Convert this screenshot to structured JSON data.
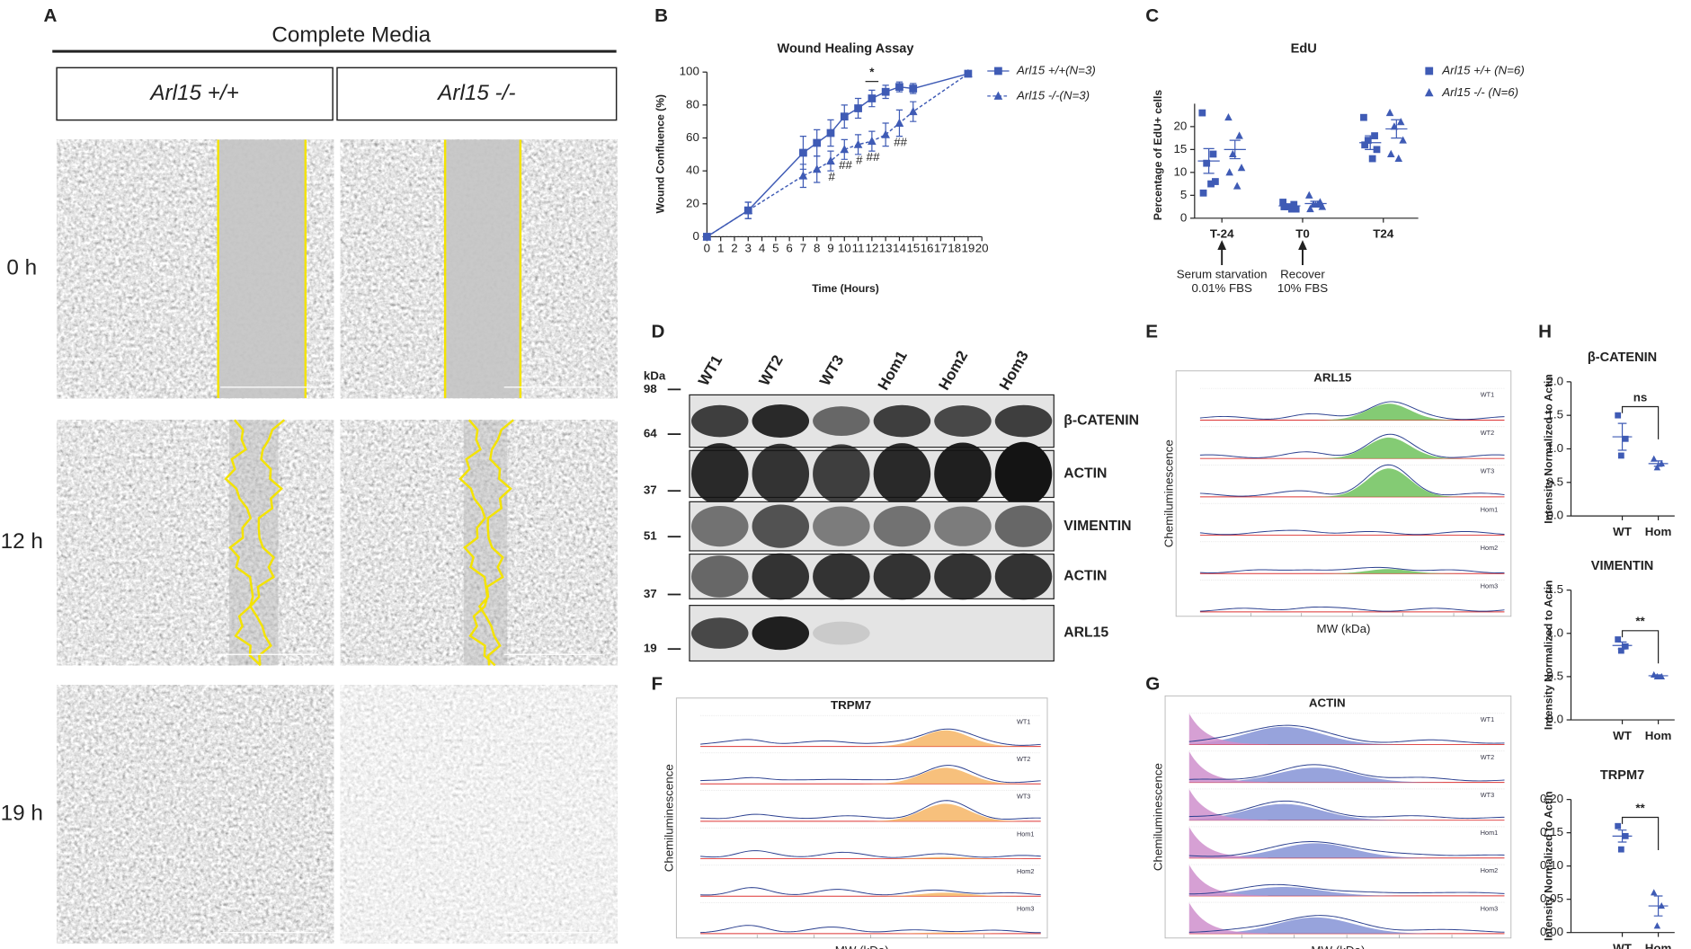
{
  "panel_a": {
    "label": "A",
    "header": "Complete Media",
    "columns": [
      "Arl15 +/+",
      "Arl15 -/-"
    ],
    "rows": [
      "0 h",
      "12 h",
      "19 h"
    ]
  },
  "chart_data": [
    {
      "panel": "B",
      "type": "line",
      "title": "Wound Healing Assay",
      "x_label": "Time (Hours)",
      "y_label": "Wound Confluence (%)",
      "x": [
        0,
        3,
        7,
        8,
        9,
        10,
        11,
        12,
        13,
        14,
        15,
        19
      ],
      "xlim": [
        0,
        20
      ],
      "xticks": [
        0,
        1,
        2,
        3,
        4,
        5,
        6,
        7,
        8,
        9,
        10,
        11,
        12,
        13,
        14,
        15,
        16,
        17,
        18,
        19,
        20
      ],
      "ylim": [
        0,
        100
      ],
      "yticks": [
        0,
        20,
        40,
        60,
        80,
        100
      ],
      "legend": "upper right",
      "series": [
        {
          "name": "Arl15 +/+(N=3)",
          "color": "#3f5bb5",
          "marker": "square",
          "dashed": false,
          "values": [
            0,
            16,
            51,
            57,
            63,
            73,
            78,
            84,
            88,
            91,
            90,
            99
          ],
          "errors": [
            0,
            5,
            10,
            8,
            8,
            7,
            6,
            5,
            4,
            3,
            3,
            0
          ]
        },
        {
          "name": "Arl15 -/-(N=3)",
          "color": "#3f5bb5",
          "marker": "triangle",
          "dashed": true,
          "values": [
            0,
            16,
            37,
            41,
            46,
            53,
            56,
            58,
            62,
            69,
            76,
            99
          ],
          "errors": [
            0,
            5,
            7,
            8,
            6,
            6,
            6,
            6,
            7,
            8,
            6,
            0
          ]
        }
      ],
      "annotations": [
        {
          "text": "*",
          "x": 12,
          "position": "above"
        },
        {
          "text": "#",
          "x": 9,
          "position": "below"
        },
        {
          "text": "##",
          "x": 10,
          "position": "below"
        },
        {
          "text": "#",
          "x": 11,
          "position": "below"
        },
        {
          "text": "##",
          "x": 12,
          "position": "below"
        },
        {
          "text": "##",
          "x": 14,
          "position": "below"
        }
      ]
    },
    {
      "panel": "C",
      "type": "strip",
      "title": "EdU",
      "y_label": "Percentage of EdU+ cells",
      "categories": [
        "T-24",
        "T0",
        "T24"
      ],
      "ylim": [
        0,
        25
      ],
      "yticks": [
        0,
        5,
        10,
        15,
        20
      ],
      "legend": "upper right",
      "series": [
        {
          "name": "Arl15 +/+ (N=6)",
          "color": "#3f5bb5",
          "marker": "square",
          "points": [
            [
              23,
              14,
              12,
              8,
              5.5,
              7.5
            ],
            [
              3.5,
              3,
              2.5,
              2,
              2.5,
              2
            ],
            [
              22,
              18,
              17,
              15,
              16,
              13
            ]
          ],
          "means": [
            12.5,
            2.7,
            16.5
          ],
          "sems": [
            2.7,
            0.4,
            1.5
          ]
        },
        {
          "name": "Arl15 -/- (N=6)",
          "color": "#3f5bb5",
          "marker": "triangle",
          "points": [
            [
              22,
              18,
              14,
              11,
              10,
              7
            ],
            [
              5,
              3.5,
              3,
              2.5,
              2,
              3
            ],
            [
              23,
              21,
              20,
              17,
              14,
              13
            ]
          ],
          "means": [
            15,
            3.2,
            19.5
          ],
          "sems": [
            2,
            0.5,
            2
          ]
        }
      ],
      "annotations": [
        {
          "lines": [
            "Serum starvation",
            "0.01% FBS"
          ],
          "category": 0
        },
        {
          "lines": [
            "Recover",
            "10% FBS"
          ],
          "category": 1
        }
      ]
    },
    {
      "panel": "H",
      "type": "dot",
      "title": "β-CATENIN",
      "y_label": "Intensity Normalized to Actin",
      "categories": [
        "WT",
        "Hom"
      ],
      "color": "#3f5bb5",
      "markers": [
        "square",
        "triangle"
      ],
      "ylim": [
        0,
        2
      ],
      "yticks": [
        {
          "value": 0,
          "label": "0.0"
        },
        {
          "value": 0.5,
          "label": "0.5"
        },
        {
          "value": 1,
          "label": "1.0"
        },
        {
          "value": 1.5,
          "label": "1.5"
        },
        {
          "value": 2,
          "label": "2.0"
        }
      ],
      "points": [
        [
          1.5,
          1.15,
          0.9
        ],
        [
          0.85,
          0.78,
          0.72
        ]
      ],
      "means": [
        1.18,
        0.78
      ],
      "sems": [
        0.2,
        0.04
      ],
      "significance": "ns"
    },
    {
      "type": "dot",
      "title": "VIMENTIN",
      "y_label": "Intensity Normalized to Actin",
      "categories": [
        "WT",
        "Hom"
      ],
      "color": "#3f5bb5",
      "markers": [
        "square",
        "triangle"
      ],
      "ylim": [
        0,
        1.5
      ],
      "yticks": [
        {
          "value": 0,
          "label": "0.0"
        },
        {
          "value": 0.5,
          "label": "0.5"
        },
        {
          "value": 1,
          "label": "1.0"
        },
        {
          "value": 1.5,
          "label": "1.5"
        }
      ],
      "points": [
        [
          0.93,
          0.85,
          0.8
        ],
        [
          0.52,
          0.5,
          0.5
        ]
      ],
      "means": [
        0.86,
        0.51
      ],
      "sems": [
        0.04,
        0.01
      ],
      "significance": "**"
    },
    {
      "type": "dot",
      "title": "TRPM7",
      "y_label": "Intensity Normalized to Actin",
      "categories": [
        "WT",
        "Hom"
      ],
      "color": "#3f5bb5",
      "markers": [
        "square",
        "triangle"
      ],
      "ylim": [
        0,
        0.2
      ],
      "yticks": [
        {
          "value": 0,
          "label": "0.00"
        },
        {
          "value": 0.05,
          "label": "0.05"
        },
        {
          "value": 0.1,
          "label": "0.10"
        },
        {
          "value": 0.15,
          "label": "0.15"
        },
        {
          "value": 0.2,
          "label": "0.20"
        }
      ],
      "points": [
        [
          0.16,
          0.145,
          0.125
        ],
        [
          0.06,
          0.04,
          0.01
        ]
      ],
      "means": [
        0.145,
        0.04
      ],
      "sems": [
        0.009,
        0.015
      ],
      "significance": "**"
    }
  ],
  "panel_d": {
    "label": "D",
    "unit": "kDa",
    "lanes": [
      "WT1",
      "WT2",
      "WT3",
      "Hom1",
      "Hom2",
      "Hom3"
    ],
    "markers": [
      98,
      64,
      37,
      51,
      37,
      19
    ],
    "bands": [
      "β-CATENIN",
      "ACTIN",
      "VIMENTIN",
      "ACTIN",
      "ARL15"
    ]
  },
  "panel_e": {
    "label": "E",
    "title": "ARL15",
    "x_label": "MW (kDa)",
    "y_label": "Chemiluminescence",
    "traces": [
      "WT1",
      "WT2",
      "WT3",
      "Hom1",
      "Hom2",
      "Hom3"
    ]
  },
  "panel_f": {
    "label": "F",
    "title": "TRPM7",
    "x_label": "MW (kDa)",
    "y_label": "Chemiluminescence",
    "traces": [
      "WT1",
      "WT2",
      "WT3",
      "Hom1",
      "Hom2",
      "Hom3"
    ]
  },
  "panel_g": {
    "label": "G",
    "title": "ACTIN",
    "x_label": "MW (kDa)",
    "y_label": "Chemiluminescence",
    "traces": [
      "WT1",
      "WT2",
      "WT3",
      "Hom1",
      "Hom2",
      "Hom3"
    ]
  }
}
